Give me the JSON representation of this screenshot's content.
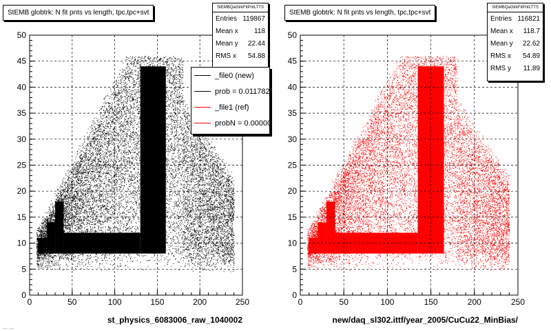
{
  "footer_text": "... ...",
  "charts": [
    {
      "title": "StEMB globtrk: N fit pnts vs length, tpc,tpc+svt",
      "xlabel": "st_physics_6083006_raw_1040002",
      "stats": {
        "name": "StEMBQaGtrkFitPntLTTS",
        "rows": [
          {
            "label": "Entries",
            "value": "119867"
          },
          {
            "label": "Mean x",
            "value": "118"
          },
          {
            "label": "Mean y",
            "value": "22.44"
          },
          {
            "label": "RMS x",
            "value": "54.88"
          }
        ]
      },
      "color": "#000000"
    },
    {
      "title": "StEMB globtrk: N fit pnts vs length, tpc,tpc+svt",
      "xlabel": "new/daq_sl302.ittf/year_2005/CuCu22_MinBias/",
      "stats": {
        "name": "StEMBQaGtrkFitPntLTTS",
        "rows": [
          {
            "label": "Entries",
            "value": "116821"
          },
          {
            "label": "Mean x",
            "value": "118.7"
          },
          {
            "label": "Mean y",
            "value": "22.62"
          },
          {
            "label": "RMS x",
            "value": "54.89"
          },
          {
            "label": "RMS y",
            "value": "11.89"
          }
        ]
      },
      "color": "#ff0000"
    }
  ],
  "legend": {
    "entries": [
      {
        "label": "_file0 (new)",
        "color": "#000000"
      },
      {
        "label": "prob = 0.011782",
        "color": "#000000"
      },
      {
        "label": "_file1 (ref)",
        "color": "#ff0000"
      },
      {
        "label": "probN = 0.000000",
        "color": "#ff0000"
      }
    ]
  },
  "chart_data": [
    {
      "type": "scatter",
      "title": "StEMB globtrk: N fit pnts vs length, tpc,tpc+svt",
      "xlabel": "st_physics_6083006_raw_1040002",
      "ylabel": "",
      "xlim": [
        0,
        250
      ],
      "ylim": [
        0,
        50
      ],
      "xticks": [
        0,
        50,
        100,
        150,
        200,
        250
      ],
      "yticks": [
        0,
        5,
        10,
        15,
        20,
        25,
        30,
        35,
        40,
        45,
        50
      ],
      "grid": true,
      "series": [
        {
          "name": "_file0 (new)",
          "color": "#000000",
          "density": [
            {
              "x_from": 10,
              "x_to": 20,
              "y_from": 8,
              "y_to": 11
            },
            {
              "x_from": 20,
              "x_to": 30,
              "y_from": 8,
              "y_to": 14
            },
            {
              "x_from": 30,
              "x_to": 40,
              "y_from": 8,
              "y_to": 18
            },
            {
              "x_from": 40,
              "x_to": 130,
              "y_from": 8,
              "y_to": 12
            },
            {
              "x_from": 130,
              "x_to": 160,
              "y_from": 8,
              "y_to": 44
            }
          ]
        }
      ]
    },
    {
      "type": "scatter",
      "title": "StEMB globtrk: N fit pnts vs length, tpc,tpc+svt",
      "xlabel": "new/daq_sl302.ittf/year_2005/CuCu22_MinBias/",
      "ylabel": "",
      "xlim": [
        0,
        250
      ],
      "ylim": [
        0,
        50
      ],
      "xticks": [
        0,
        50,
        100,
        150,
        200,
        250
      ],
      "yticks": [
        0,
        5,
        10,
        15,
        20,
        25,
        30,
        35,
        40,
        45,
        50
      ],
      "grid": true,
      "series": [
        {
          "name": "_file1 (ref)",
          "color": "#ff0000",
          "density": [
            {
              "x_from": 10,
              "x_to": 20,
              "y_from": 8,
              "y_to": 11
            },
            {
              "x_from": 20,
              "x_to": 30,
              "y_from": 8,
              "y_to": 14
            },
            {
              "x_from": 30,
              "x_to": 40,
              "y_from": 8,
              "y_to": 18
            },
            {
              "x_from": 40,
              "x_to": 135,
              "y_from": 8,
              "y_to": 12
            },
            {
              "x_from": 135,
              "x_to": 165,
              "y_from": 8,
              "y_to": 44
            }
          ]
        }
      ]
    }
  ]
}
